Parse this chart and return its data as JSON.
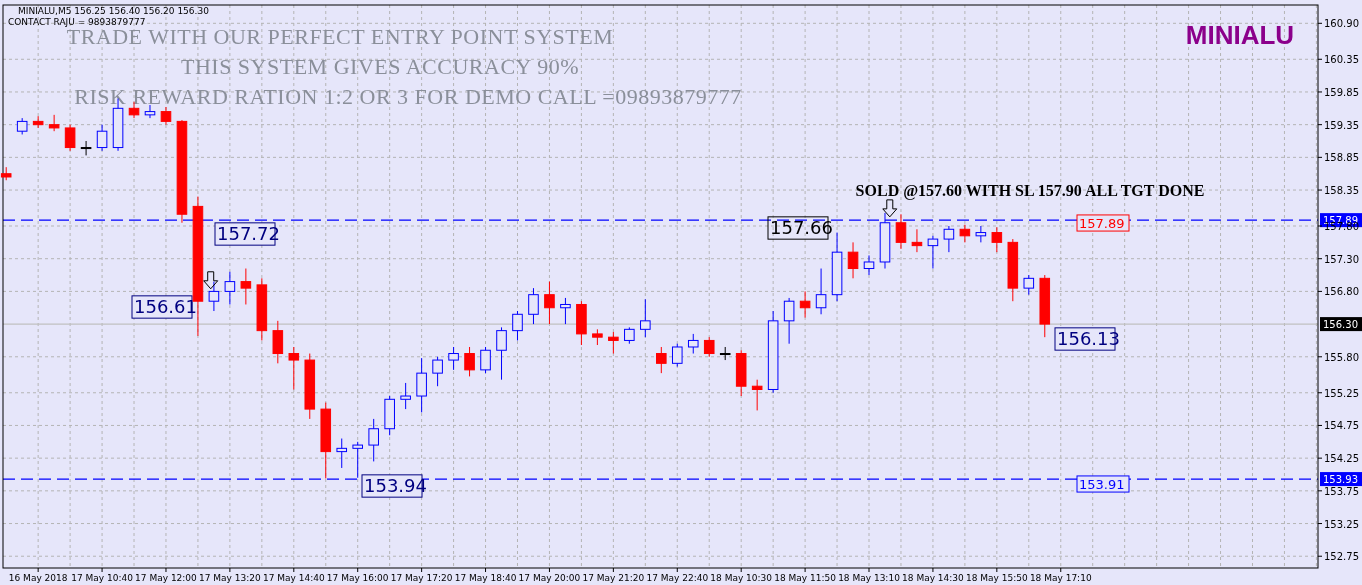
{
  "chart_data": {
    "type": "candlestick",
    "title": "MINIALU",
    "categories": [
      null,
      null,
      "16 May 2018",
      null,
      null,
      null,
      "17 May 10:40",
      null,
      null,
      null,
      "17 May 12:00",
      null,
      null,
      null,
      "17 May 13:20",
      null,
      null,
      null,
      "17 May 14:40",
      null,
      null,
      null,
      "17 May 16:00",
      null,
      null,
      null,
      "17 May 17:20",
      null,
      null,
      null,
      "17 May 18:40",
      null,
      null,
      null,
      "17 May 20:00",
      null,
      null,
      null,
      "17 May 21:20",
      null,
      null,
      null,
      "17 May 22:40",
      null,
      null,
      null,
      "18 May 10:30",
      null,
      null,
      null,
      "18 May 11:50",
      null,
      null,
      null,
      "18 May 13:10",
      null,
      null,
      null,
      "18 May 14:30",
      null,
      null,
      null,
      "18 May 15:50",
      null,
      null,
      null,
      "18 May 17:10",
      null,
      null,
      null,
      null,
      null,
      null,
      null,
      null,
      null,
      null,
      null,
      null,
      null,
      null,
      null,
      null
    ],
    "ohlc": [
      [
        158.6,
        158.7,
        158.5,
        158.55
      ],
      [
        159.25,
        159.45,
        159.2,
        159.4
      ],
      [
        159.4,
        159.48,
        159.3,
        159.35
      ],
      [
        159.35,
        159.5,
        159.25,
        159.3
      ],
      [
        159.3,
        159.35,
        158.95,
        159.0
      ],
      [
        159.0,
        159.1,
        158.88,
        159.0
      ],
      [
        159.0,
        159.35,
        158.95,
        159.25
      ],
      [
        159.0,
        159.75,
        158.95,
        159.6
      ],
      [
        159.6,
        159.7,
        159.45,
        159.5
      ],
      [
        159.5,
        159.65,
        159.45,
        159.55
      ],
      [
        159.55,
        159.62,
        159.35,
        159.4
      ],
      [
        159.4,
        159.42,
        157.85,
        157.98
      ],
      [
        158.1,
        158.25,
        156.12,
        156.65
      ],
      [
        156.65,
        156.95,
        156.5,
        156.8
      ],
      [
        156.8,
        157.1,
        156.6,
        156.95
      ],
      [
        156.95,
        157.15,
        156.6,
        156.85
      ],
      [
        156.9,
        157.0,
        156.05,
        156.2
      ],
      [
        156.2,
        156.35,
        155.7,
        155.85
      ],
      [
        155.85,
        155.95,
        155.3,
        155.75
      ],
      [
        155.75,
        155.85,
        154.85,
        155.0
      ],
      [
        155.0,
        155.1,
        153.94,
        154.35
      ],
      [
        154.35,
        154.55,
        154.1,
        154.4
      ],
      [
        154.4,
        154.5,
        153.95,
        154.45
      ],
      [
        154.45,
        154.85,
        154.2,
        154.7
      ],
      [
        154.7,
        155.2,
        154.6,
        155.15
      ],
      [
        155.15,
        155.4,
        155.0,
        155.2
      ],
      [
        155.2,
        155.78,
        154.95,
        155.55
      ],
      [
        155.55,
        155.8,
        155.35,
        155.75
      ],
      [
        155.75,
        155.95,
        155.6,
        155.85
      ],
      [
        155.85,
        155.95,
        155.5,
        155.6
      ],
      [
        155.6,
        155.95,
        155.55,
        155.9
      ],
      [
        155.9,
        156.25,
        155.45,
        156.2
      ],
      [
        156.2,
        156.5,
        156.05,
        156.45
      ],
      [
        156.45,
        156.85,
        156.3,
        156.75
      ],
      [
        156.75,
        156.95,
        156.3,
        156.55
      ],
      [
        156.55,
        156.7,
        156.3,
        156.6
      ],
      [
        156.6,
        156.65,
        155.98,
        156.15
      ],
      [
        156.15,
        156.22,
        155.98,
        156.1
      ],
      [
        156.1,
        156.18,
        155.85,
        156.05
      ],
      [
        156.05,
        156.25,
        156.0,
        156.22
      ],
      [
        156.22,
        156.68,
        156.1,
        156.35
      ],
      [
        155.85,
        155.95,
        155.55,
        155.7
      ],
      [
        155.7,
        156.0,
        155.65,
        155.95
      ],
      [
        155.95,
        156.15,
        155.85,
        156.05
      ],
      [
        156.05,
        156.1,
        155.8,
        155.85
      ],
      [
        155.85,
        155.95,
        155.75,
        155.85
      ],
      [
        155.85,
        155.9,
        155.2,
        155.35
      ],
      [
        155.35,
        155.45,
        154.98,
        155.3
      ],
      [
        155.3,
        156.5,
        155.25,
        156.35
      ],
      [
        156.35,
        156.7,
        156.0,
        156.65
      ],
      [
        156.65,
        156.8,
        156.4,
        156.55
      ],
      [
        156.55,
        157.15,
        156.45,
        156.75
      ],
      [
        156.75,
        157.7,
        156.65,
        157.4
      ],
      [
        157.4,
        157.55,
        157.0,
        157.15
      ],
      [
        157.15,
        157.35,
        157.05,
        157.25
      ],
      [
        157.25,
        158.0,
        157.15,
        157.85
      ],
      [
        157.85,
        157.98,
        157.45,
        157.55
      ],
      [
        157.55,
        157.75,
        157.4,
        157.5
      ],
      [
        157.5,
        157.65,
        157.15,
        157.6
      ],
      [
        157.6,
        157.8,
        157.4,
        157.75
      ],
      [
        157.75,
        157.82,
        157.55,
        157.65
      ],
      [
        157.65,
        157.8,
        157.55,
        157.7
      ],
      [
        157.7,
        157.78,
        157.4,
        157.55
      ],
      [
        157.55,
        157.6,
        156.65,
        156.85
      ],
      [
        156.85,
        157.05,
        156.75,
        157.0
      ],
      [
        157.0,
        157.05,
        156.1,
        156.3
      ],
      null,
      null,
      null,
      null,
      null,
      null,
      null,
      null,
      null,
      null,
      null,
      null,
      null,
      null,
      null,
      null,
      null
    ],
    "ylim": [
      152.57,
      161.18
    ],
    "yticks": [
      152.75,
      153.25,
      153.75,
      154.25,
      154.75,
      155.25,
      {
        "value": 155.8,
        "label": "155.80"
      },
      {
        "value": 156.8,
        "label": "156.80"
      },
      {
        "value": 157.3,
        "label": "157.30"
      },
      {
        "value": 157.8,
        "label": "157.80"
      },
      158.35,
      158.85,
      159.35,
      159.85,
      160.35,
      {
        "value": 160.9,
        "label": "160.90"
      }
    ],
    "grid": true,
    "ref_lines": [
      {
        "axis": "y",
        "value": 157.89,
        "label": "157.89",
        "color": "#0000ff",
        "line_style": "dashed"
      },
      {
        "axis": "y",
        "value": 153.93,
        "label": "153.93",
        "color": "#0000ff",
        "line_style": "dashed"
      },
      {
        "axis": "y",
        "value": 156.3,
        "label": "156.30",
        "color": "#c0c0c0",
        "line_style": "solid"
      }
    ],
    "annotations": [
      "MINIALU,M5  156.25 156.40 156.20 156.30",
      "CONTACT RAJU = 9893879777",
      "TRADE WITH OUR PERFECT ENTRY POINT SYSTEM",
      "THIS SYSTEM GIVES ACCURACY 90%",
      "RISK REWARD RATION 1:2 OR 3 FOR DEMO CALL =09893879777",
      "SOLD  @157.60  WITH SL 157.90 ALL TGT DONE",
      "157.72",
      "156.61",
      "153.94",
      "157.66",
      "156.13",
      "157.89",
      "153.91"
    ]
  }
}
